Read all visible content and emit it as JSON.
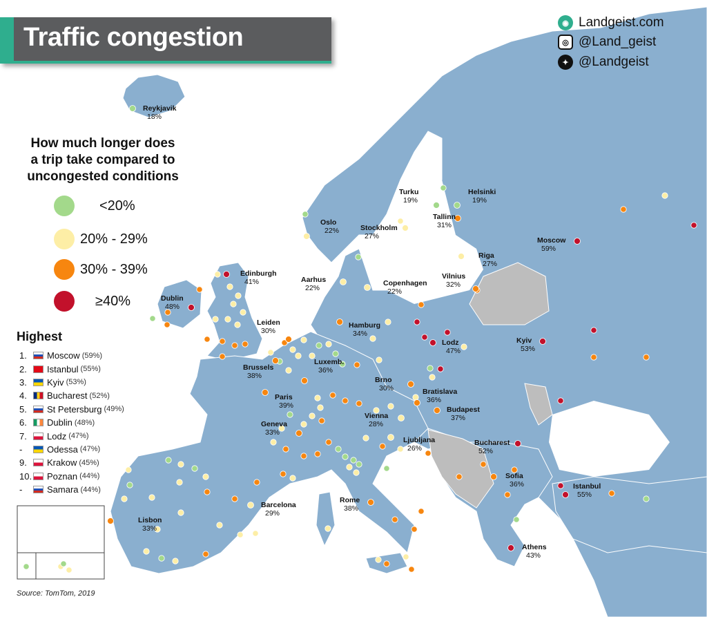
{
  "title": "Traffic congestion",
  "social": {
    "website": "Landgeist.com",
    "instagram": "@Land_geist",
    "twitter": "@Landgeist",
    "website_icon": "globe-icon",
    "instagram_icon": "instagram-icon",
    "twitter_icon": "twitter-icon"
  },
  "legend": {
    "question_line1": "How much longer does",
    "question_line2": "a trip take compared to",
    "question_line3": "uncongested conditions",
    "items": [
      {
        "label": "<20%",
        "color": "#a3d98b"
      },
      {
        "label": "20% - 29%",
        "color": "#fdeea6"
      },
      {
        "label": "30% - 39%",
        "color": "#f7860f"
      },
      {
        "label": "≥40%",
        "color": "#c2112b"
      }
    ]
  },
  "highest": {
    "title": "Highest",
    "items": [
      {
        "rank": "1.",
        "city": "Moscow",
        "value": "(59%)",
        "flag": "russia"
      },
      {
        "rank": "2.",
        "city": "Istanbul",
        "value": "(55%)",
        "flag": "turkey"
      },
      {
        "rank": "3.",
        "city": "Kyiv",
        "value": "(53%)",
        "flag": "ukraine"
      },
      {
        "rank": "4.",
        "city": "Bucharest",
        "value": "(52%)",
        "flag": "romania"
      },
      {
        "rank": "5.",
        "city": "St Petersburg",
        "value": "(49%)",
        "flag": "russia"
      },
      {
        "rank": "6.",
        "city": "Dublin",
        "value": "(48%)",
        "flag": "ireland"
      },
      {
        "rank": "7.",
        "city": "Lodz",
        "value": "(47%)",
        "flag": "poland"
      },
      {
        "rank": "-",
        "city": "Odessa",
        "value": "(47%)",
        "flag": "ukraine"
      },
      {
        "rank": "9.",
        "city": "Krakow",
        "value": "(45%)",
        "flag": "poland"
      },
      {
        "rank": "10.",
        "city": "Poznan",
        "value": "(44%)",
        "flag": "poland"
      },
      {
        "rank": "-",
        "city": "Samara",
        "value": "(44%)",
        "flag": "russia"
      }
    ]
  },
  "source": "Source: TomTom, 2019",
  "colors": {
    "land": "#8aafcf",
    "grey_land": "#bdbdbd",
    "sea": "#ffffff",
    "accent": "#2fae8e",
    "title_bg": "#5b5c5e"
  },
  "cities": [
    {
      "name": "Reykjavik",
      "value": "18%",
      "category": "low"
    },
    {
      "name": "Turku",
      "value": "19%",
      "category": "low"
    },
    {
      "name": "Helsinki",
      "value": "19%",
      "category": "low"
    },
    {
      "name": "Oslo",
      "value": "22%",
      "category": "mid"
    },
    {
      "name": "Stockholm",
      "value": "27%",
      "category": "mid"
    },
    {
      "name": "Tallinn",
      "value": "31%",
      "category": "high"
    },
    {
      "name": "Moscow",
      "value": "59%",
      "category": "top"
    },
    {
      "name": "Riga",
      "value": "27%",
      "category": "mid"
    },
    {
      "name": "Edinburgh",
      "value": "41%",
      "category": "top"
    },
    {
      "name": "Aarhus",
      "value": "22%",
      "category": "mid"
    },
    {
      "name": "Copenhagen",
      "value": "22%",
      "category": "mid"
    },
    {
      "name": "Vilnius",
      "value": "32%",
      "category": "high"
    },
    {
      "name": "Dublin",
      "value": "48%",
      "category": "top"
    },
    {
      "name": "Leiden",
      "value": "30%",
      "category": "high"
    },
    {
      "name": "Hamburg",
      "value": "34%",
      "category": "high"
    },
    {
      "name": "Lodz",
      "value": "47%",
      "category": "top"
    },
    {
      "name": "Kyiv",
      "value": "53%",
      "category": "top"
    },
    {
      "name": "Brussels",
      "value": "38%",
      "category": "high"
    },
    {
      "name": "Luxemb.",
      "value": "36%",
      "category": "high"
    },
    {
      "name": "Paris",
      "value": "39%",
      "category": "high"
    },
    {
      "name": "Brno",
      "value": "30%",
      "category": "high"
    },
    {
      "name": "Bratislava",
      "value": "36%",
      "category": "high"
    },
    {
      "name": "Budapest",
      "value": "37%",
      "category": "high"
    },
    {
      "name": "Vienna",
      "value": "28%",
      "category": "mid"
    },
    {
      "name": "Geneva",
      "value": "33%",
      "category": "high"
    },
    {
      "name": "Ljubljana",
      "value": "26%",
      "category": "mid"
    },
    {
      "name": "Bucharest",
      "value": "52%",
      "category": "top"
    },
    {
      "name": "Sofia",
      "value": "36%",
      "category": "high"
    },
    {
      "name": "Istanbul",
      "value": "55%",
      "category": "top"
    },
    {
      "name": "Barcelona",
      "value": "29%",
      "category": "mid"
    },
    {
      "name": "Rome",
      "value": "38%",
      "category": "high"
    },
    {
      "name": "Lisbon",
      "value": "33%",
      "category": "high"
    },
    {
      "name": "Athens",
      "value": "43%",
      "category": "top"
    }
  ]
}
